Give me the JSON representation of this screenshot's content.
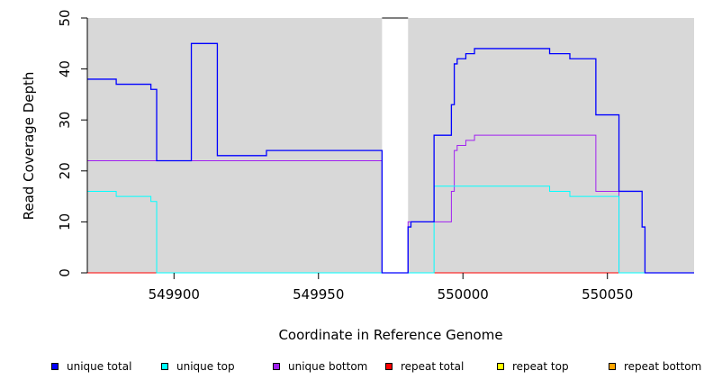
{
  "chart_data": {
    "type": "line",
    "step": true,
    "xlabel": "Coordinate in Reference Genome",
    "ylabel": "Read Coverage Depth",
    "xlim": [
      549870,
      550080
    ],
    "ylim": [
      0,
      50
    ],
    "x_ticks": [
      549900,
      549950,
      550000,
      550050
    ],
    "y_ticks": [
      0,
      10,
      20,
      30,
      40,
      50
    ],
    "gap_region": [
      549972,
      549981
    ],
    "background": "#d8d8d8",
    "series": [
      {
        "name": "unique total",
        "color": "#0000ff",
        "points": [
          [
            549870,
            38
          ],
          [
            549880,
            37
          ],
          [
            549892,
            36
          ],
          [
            549894,
            22
          ],
          [
            549906,
            45
          ],
          [
            549915,
            23
          ],
          [
            549932,
            24
          ],
          [
            549972,
            0
          ],
          [
            549981,
            9
          ],
          [
            549982,
            10
          ],
          [
            549990,
            27
          ],
          [
            549996,
            33
          ],
          [
            549997,
            41
          ],
          [
            549998,
            42
          ],
          [
            550001,
            43
          ],
          [
            550004,
            44
          ],
          [
            550030,
            43
          ],
          [
            550037,
            42
          ],
          [
            550046,
            31
          ],
          [
            550054,
            16
          ],
          [
            550062,
            9
          ],
          [
            550063,
            0
          ],
          [
            550080,
            0
          ]
        ]
      },
      {
        "name": "unique top",
        "color": "#00ffff",
        "points": [
          [
            549870,
            16
          ],
          [
            549880,
            15
          ],
          [
            549892,
            14
          ],
          [
            549894,
            0
          ],
          [
            549972,
            0
          ],
          [
            549990,
            17
          ],
          [
            550030,
            16
          ],
          [
            550037,
            15
          ],
          [
            550054,
            0
          ],
          [
            550080,
            0
          ]
        ]
      },
      {
        "name": "unique bottom",
        "color": "#a020f0",
        "points": [
          [
            549870,
            22
          ],
          [
            549894,
            22
          ],
          [
            549972,
            0
          ],
          [
            549981,
            10
          ],
          [
            549996,
            16
          ],
          [
            549997,
            24
          ],
          [
            549998,
            25
          ],
          [
            550001,
            26
          ],
          [
            550004,
            27
          ],
          [
            550046,
            16
          ],
          [
            550054,
            16
          ],
          [
            550054,
            0
          ],
          [
            550080,
            0
          ]
        ]
      },
      {
        "name": "repeat total",
        "color": "#ff0000",
        "points": [
          [
            549870,
            0
          ],
          [
            550080,
            0
          ]
        ]
      },
      {
        "name": "repeat top",
        "color": "#ffff00",
        "points": [
          [
            549870,
            0
          ],
          [
            550080,
            0
          ]
        ]
      },
      {
        "name": "repeat bottom",
        "color": "#ffa500",
        "points": [
          [
            549870,
            0
          ],
          [
            550080,
            0
          ]
        ]
      }
    ]
  }
}
